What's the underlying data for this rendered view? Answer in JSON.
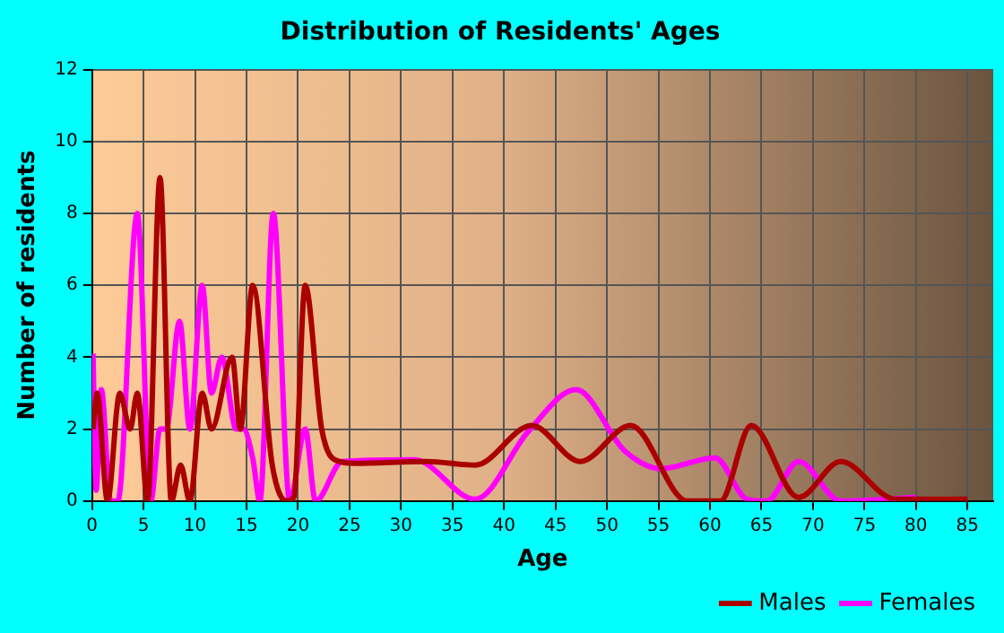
{
  "chart_data": {
    "type": "line",
    "title": "Distribution of Residents' Ages",
    "xlabel": "Age",
    "ylabel": "Number of residents",
    "xlim": [
      0,
      87.5
    ],
    "ylim": [
      0,
      12
    ],
    "xticks": [
      0,
      5,
      10,
      15,
      20,
      25,
      30,
      35,
      40,
      45,
      50,
      55,
      60,
      65,
      70,
      75,
      80,
      85
    ],
    "yticks": [
      0,
      2,
      4,
      6,
      8,
      10,
      12
    ],
    "grid": true,
    "legend": "bottom right",
    "marker": "none",
    "line_style": "solid",
    "series": [
      {
        "name": "Males",
        "color": "#aa0000",
        "x": [
          0.1,
          0.5,
          1.5,
          2.7,
          3.7,
          4.4,
          5.4,
          6.6,
          7.7,
          8.6,
          9.5,
          10.7,
          11.6,
          13.6,
          14.4,
          15.6,
          17.5,
          18.9,
          19.6,
          20.7,
          22.3,
          24,
          25.5,
          32.5,
          37.2,
          42.7,
          47.4,
          52.3,
          57.8,
          61,
          64,
          68.6,
          72.7,
          78,
          85
        ],
        "values": [
          2,
          3,
          0,
          3,
          2,
          3,
          0,
          9,
          0,
          1,
          0,
          3,
          2,
          4,
          2,
          6,
          1,
          0,
          0.1,
          6,
          2,
          1.1,
          1.05,
          1.1,
          1,
          2.1,
          1.1,
          2.1,
          0,
          0,
          2.1,
          0.1,
          1.1,
          0.05,
          0.05
        ]
      },
      {
        "name": "Females",
        "color": "#ff00ff",
        "x": [
          0.1,
          0.4,
          0.9,
          1.8,
          2.5,
          4.4,
          5.7,
          6.6,
          7.2,
          8.5,
          9.5,
          10.7,
          11.6,
          12.6,
          14,
          14.7,
          15.6,
          16.3,
          17.6,
          19.2,
          20.7,
          21.7,
          24.3,
          31.3,
          37.2,
          42.4,
          47,
          51.7,
          55.2,
          60.5,
          63.6,
          65.5,
          68.6,
          72.7,
          80
        ],
        "values": [
          4.1,
          0.3,
          3.1,
          0,
          0,
          8,
          0,
          2,
          2,
          5,
          2,
          6,
          3,
          4,
          2,
          2,
          1.2,
          0,
          8,
          0,
          2,
          0,
          1.1,
          1.15,
          0.05,
          1.95,
          3.1,
          1.4,
          0.9,
          1.2,
          0.05,
          0,
          1.1,
          0,
          0.1
        ]
      }
    ]
  }
}
